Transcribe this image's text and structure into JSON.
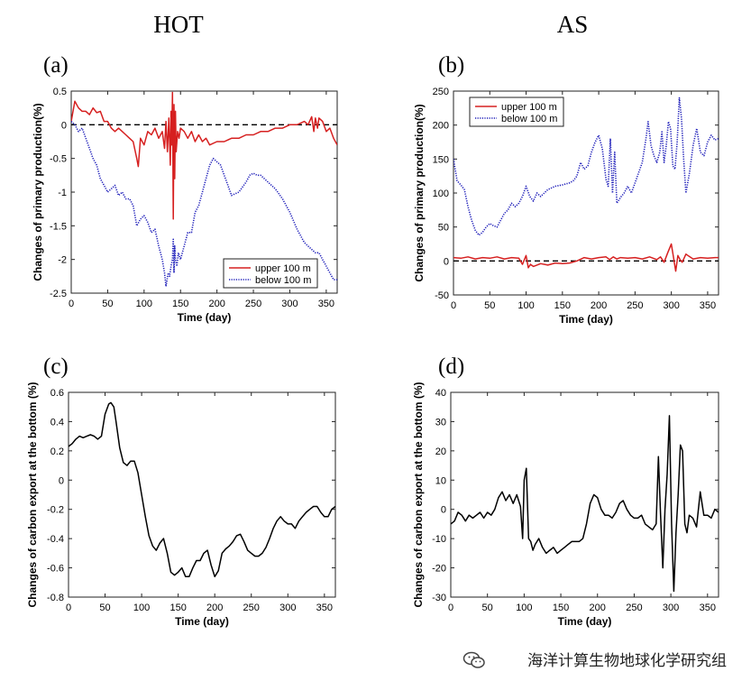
{
  "column_titles": [
    "HOT",
    "AS"
  ],
  "watermark": {
    "text": "海洋计算生物地球化学研究组"
  },
  "colors": {
    "upper": "#d62020",
    "below": "#1a1ab8",
    "export": "#000000",
    "reference": "#000000"
  },
  "chart_data": [
    {
      "id": "a",
      "label": "(a)",
      "column": "HOT",
      "type": "line",
      "xlabel": "Time (day)",
      "ylabel": "Changes of primary production(%)",
      "xlim": [
        0,
        365
      ],
      "ylim": [
        -2.5,
        0.5
      ],
      "xticks": [
        0,
        50,
        100,
        150,
        200,
        250,
        300,
        350
      ],
      "yticks": [
        0.5,
        0,
        -0.5,
        -1,
        -1.5,
        -2,
        -2.5
      ],
      "ytick_labels": [
        "0.5",
        "0",
        "-0.5",
        "-1",
        "-1.5",
        "-2",
        "-2.5"
      ],
      "reference_line": 0,
      "legend": {
        "position": "bottom-right",
        "entries": [
          "upper 100 m",
          "below 100 m"
        ]
      },
      "series": [
        {
          "name": "upper 100 m",
          "color": "#d62020",
          "style": "solid",
          "x": [
            0,
            5,
            10,
            15,
            20,
            25,
            30,
            35,
            40,
            45,
            50,
            55,
            60,
            65,
            70,
            75,
            80,
            85,
            90,
            92,
            95,
            100,
            105,
            110,
            115,
            120,
            125,
            128,
            130,
            132,
            134,
            136,
            137,
            138,
            139,
            140,
            141,
            142,
            143,
            144,
            146,
            148,
            150,
            155,
            160,
            165,
            170,
            175,
            180,
            185,
            190,
            200,
            210,
            220,
            230,
            240,
            250,
            260,
            270,
            280,
            290,
            300,
            310,
            320,
            325,
            330,
            333,
            335,
            338,
            340,
            345,
            350,
            355,
            360,
            365
          ],
          "y": [
            0.05,
            0.35,
            0.25,
            0.2,
            0.2,
            0.15,
            0.25,
            0.18,
            0.2,
            0.05,
            0.05,
            -0.05,
            -0.1,
            -0.05,
            -0.1,
            -0.15,
            -0.2,
            -0.25,
            -0.5,
            -0.62,
            -0.2,
            -0.3,
            -0.1,
            -0.15,
            -0.05,
            -0.2,
            -0.1,
            -0.35,
            0.05,
            -0.4,
            0.1,
            -0.6,
            0.2,
            -0.3,
            0.48,
            -1.4,
            0.3,
            -0.8,
            0.2,
            -0.4,
            -0.1,
            -0.2,
            -0.05,
            -0.1,
            -0.2,
            -0.1,
            -0.25,
            -0.15,
            -0.25,
            -0.2,
            -0.3,
            -0.25,
            -0.25,
            -0.2,
            -0.2,
            -0.15,
            -0.15,
            -0.1,
            -0.1,
            -0.05,
            -0.05,
            0.0,
            0.0,
            0.05,
            0.0,
            0.12,
            -0.1,
            0.1,
            -0.05,
            0.1,
            0.05,
            -0.1,
            -0.05,
            -0.2,
            -0.3
          ]
        },
        {
          "name": "below 100 m",
          "color": "#1a1ab8",
          "style": "dotted",
          "x": [
            0,
            5,
            10,
            15,
            20,
            25,
            30,
            35,
            40,
            45,
            50,
            55,
            60,
            65,
            70,
            75,
            80,
            85,
            90,
            95,
            100,
            105,
            110,
            115,
            120,
            125,
            128,
            130,
            133,
            135,
            137,
            139,
            140,
            141,
            142,
            143,
            145,
            147,
            150,
            155,
            160,
            165,
            170,
            175,
            180,
            185,
            190,
            195,
            200,
            205,
            210,
            215,
            220,
            230,
            240,
            245,
            250,
            255,
            260,
            265,
            270,
            280,
            290,
            300,
            310,
            320,
            330,
            335,
            340,
            345,
            350,
            355,
            360,
            365
          ],
          "y": [
            0.05,
            0.0,
            -0.1,
            -0.05,
            -0.2,
            -0.35,
            -0.5,
            -0.6,
            -0.8,
            -0.9,
            -1.0,
            -0.95,
            -0.9,
            -1.05,
            -1.0,
            -1.1,
            -1.1,
            -1.2,
            -1.5,
            -1.4,
            -1.35,
            -1.45,
            -1.6,
            -1.55,
            -1.8,
            -2.0,
            -2.2,
            -2.4,
            -2.2,
            -2.25,
            -2.1,
            -2.0,
            -1.7,
            -2.2,
            -1.8,
            -2.0,
            -2.1,
            -1.9,
            -2.0,
            -1.8,
            -1.6,
            -1.6,
            -1.3,
            -1.2,
            -1.0,
            -0.8,
            -0.6,
            -0.5,
            -0.55,
            -0.6,
            -0.75,
            -0.9,
            -1.05,
            -1.0,
            -0.85,
            -0.75,
            -0.72,
            -0.75,
            -0.75,
            -0.8,
            -0.85,
            -0.95,
            -1.1,
            -1.3,
            -1.55,
            -1.75,
            -1.85,
            -1.9,
            -1.9,
            -2.0,
            -2.1,
            -2.2,
            -2.3,
            -2.3
          ]
        }
      ]
    },
    {
      "id": "b",
      "label": "(b)",
      "column": "AS",
      "type": "line",
      "xlabel": "Time (day)",
      "ylabel": "Changes of primary production(%)",
      "xlim": [
        0,
        365
      ],
      "ylim": [
        -50,
        250
      ],
      "xticks": [
        0,
        50,
        100,
        150,
        200,
        250,
        300,
        350
      ],
      "yticks": [
        250,
        200,
        150,
        100,
        50,
        0,
        -50
      ],
      "ytick_labels": [
        "250",
        "200",
        "150",
        "100",
        "50",
        "0",
        "-50"
      ],
      "reference_line": 0,
      "legend": {
        "position": "top-left",
        "entries": [
          "upper 100 m",
          "below 100 m"
        ]
      },
      "series": [
        {
          "name": "upper 100 m",
          "color": "#d62020",
          "style": "solid",
          "x": [
            0,
            10,
            20,
            30,
            40,
            50,
            60,
            70,
            80,
            90,
            95,
            100,
            103,
            106,
            110,
            120,
            130,
            140,
            150,
            160,
            170,
            180,
            190,
            200,
            210,
            215,
            220,
            225,
            230,
            240,
            250,
            260,
            270,
            280,
            285,
            290,
            295,
            300,
            303,
            306,
            309,
            312,
            315,
            320,
            330,
            340,
            350,
            360,
            365
          ],
          "y": [
            5,
            4,
            6,
            3,
            5,
            4,
            6,
            3,
            5,
            4,
            -5,
            8,
            -10,
            -5,
            -8,
            -4,
            -6,
            -3,
            -4,
            -3,
            0,
            5,
            3,
            5,
            6,
            2,
            6,
            3,
            5,
            4,
            5,
            3,
            6,
            2,
            6,
            -2,
            12,
            25,
            5,
            -15,
            8,
            2,
            -2,
            10,
            3,
            5,
            4,
            5,
            5
          ]
        },
        {
          "name": "below 100 m",
          "color": "#1a1ab8",
          "style": "dotted",
          "x": [
            0,
            5,
            10,
            15,
            20,
            25,
            30,
            35,
            40,
            45,
            50,
            55,
            60,
            65,
            70,
            75,
            80,
            85,
            90,
            95,
            100,
            105,
            110,
            115,
            120,
            130,
            140,
            150,
            160,
            165,
            170,
            175,
            180,
            185,
            190,
            195,
            200,
            205,
            210,
            213,
            216,
            219,
            222,
            225,
            228,
            231,
            235,
            240,
            245,
            250,
            255,
            260,
            265,
            268,
            272,
            276,
            280,
            284,
            287,
            290,
            293,
            296,
            299,
            302,
            305,
            308,
            311,
            314,
            317,
            320,
            325,
            330,
            335,
            340,
            345,
            350,
            355,
            360,
            365
          ],
          "y": [
            150,
            118,
            112,
            105,
            80,
            60,
            45,
            38,
            42,
            50,
            55,
            52,
            50,
            60,
            70,
            75,
            85,
            80,
            85,
            95,
            110,
            95,
            88,
            100,
            95,
            105,
            110,
            112,
            115,
            118,
            125,
            145,
            135,
            140,
            160,
            175,
            185,
            165,
            120,
            110,
            180,
            100,
            160,
            85,
            90,
            95,
            100,
            110,
            100,
            115,
            130,
            145,
            180,
            205,
            170,
            155,
            145,
            160,
            190,
            145,
            170,
            205,
            195,
            140,
            135,
            175,
            240,
            210,
            150,
            100,
            130,
            170,
            195,
            160,
            155,
            175,
            185,
            178,
            180
          ]
        }
      ]
    },
    {
      "id": "c",
      "label": "(c)",
      "column": "HOT",
      "type": "line",
      "xlabel": "Time (day)",
      "ylabel": "Changes of carbon export at the bottom (%)",
      "xlim": [
        0,
        365
      ],
      "ylim": [
        -0.8,
        0.6
      ],
      "xticks": [
        0,
        50,
        100,
        150,
        200,
        250,
        300,
        350
      ],
      "yticks": [
        0.6,
        0.4,
        0.2,
        0,
        -0.2,
        -0.4,
        -0.6,
        -0.8
      ],
      "ytick_labels": [
        "0.6",
        "0.4",
        "0.2",
        "0",
        "-0.2",
        "-0.4",
        "-0.6",
        "-0.8"
      ],
      "series": [
        {
          "name": "carbon export",
          "color": "#000000",
          "style": "solid",
          "x": [
            0,
            5,
            10,
            15,
            20,
            25,
            30,
            35,
            40,
            45,
            50,
            55,
            58,
            62,
            65,
            70,
            75,
            80,
            85,
            90,
            95,
            100,
            105,
            110,
            115,
            120,
            125,
            130,
            135,
            140,
            145,
            150,
            155,
            160,
            165,
            170,
            175,
            180,
            185,
            190,
            195,
            200,
            205,
            210,
            215,
            220,
            225,
            230,
            235,
            240,
            245,
            250,
            255,
            260,
            265,
            270,
            275,
            280,
            285,
            290,
            295,
            300,
            305,
            310,
            315,
            320,
            325,
            330,
            335,
            340,
            345,
            350,
            355,
            360,
            365
          ],
          "y": [
            0.23,
            0.25,
            0.28,
            0.3,
            0.29,
            0.3,
            0.31,
            0.3,
            0.28,
            0.3,
            0.45,
            0.52,
            0.53,
            0.5,
            0.4,
            0.22,
            0.12,
            0.1,
            0.13,
            0.13,
            0.05,
            -0.1,
            -0.25,
            -0.38,
            -0.45,
            -0.48,
            -0.43,
            -0.4,
            -0.5,
            -0.63,
            -0.65,
            -0.63,
            -0.6,
            -0.66,
            -0.66,
            -0.6,
            -0.55,
            -0.55,
            -0.5,
            -0.48,
            -0.58,
            -0.66,
            -0.62,
            -0.5,
            -0.47,
            -0.45,
            -0.42,
            -0.38,
            -0.37,
            -0.42,
            -0.48,
            -0.5,
            -0.52,
            -0.52,
            -0.5,
            -0.46,
            -0.4,
            -0.33,
            -0.28,
            -0.25,
            -0.28,
            -0.3,
            -0.3,
            -0.33,
            -0.28,
            -0.25,
            -0.22,
            -0.2,
            -0.18,
            -0.18,
            -0.22,
            -0.25,
            -0.25,
            -0.2,
            -0.18
          ]
        }
      ]
    },
    {
      "id": "d",
      "label": "(d)",
      "column": "AS",
      "type": "line",
      "xlabel": "Time (day)",
      "ylabel": "Changes of carbon export at the bottom (%)",
      "xlim": [
        0,
        365
      ],
      "ylim": [
        -30,
        40
      ],
      "xticks": [
        0,
        50,
        100,
        150,
        200,
        250,
        300,
        350
      ],
      "yticks": [
        40,
        30,
        20,
        10,
        0,
        -10,
        -20,
        -30
      ],
      "ytick_labels": [
        "40",
        "30",
        "20",
        "10",
        "0",
        "-10",
        "-20",
        "-30"
      ],
      "series": [
        {
          "name": "carbon export",
          "color": "#000000",
          "style": "solid",
          "x": [
            0,
            5,
            10,
            15,
            20,
            25,
            30,
            35,
            40,
            45,
            50,
            55,
            60,
            65,
            70,
            75,
            80,
            85,
            90,
            95,
            98,
            100,
            103,
            106,
            109,
            112,
            115,
            120,
            125,
            130,
            135,
            140,
            145,
            150,
            155,
            160,
            165,
            170,
            175,
            180,
            185,
            190,
            195,
            200,
            205,
            210,
            215,
            220,
            225,
            230,
            235,
            240,
            245,
            250,
            255,
            260,
            265,
            270,
            275,
            280,
            283,
            286,
            289,
            292,
            295,
            298,
            301,
            304,
            307,
            310,
            313,
            316,
            319,
            322,
            325,
            330,
            335,
            340,
            345,
            350,
            355,
            360,
            365
          ],
          "y": [
            -5,
            -4,
            -1,
            -2,
            -4,
            -2,
            -3,
            -2,
            -1,
            -3,
            -1,
            -2,
            0,
            4,
            6,
            3,
            5,
            2,
            5,
            1,
            -10,
            10,
            14,
            -10,
            -11,
            -14,
            -12,
            -10,
            -13,
            -15,
            -14,
            -13,
            -15,
            -14,
            -13,
            -12,
            -11,
            -11,
            -11,
            -10,
            -5,
            2,
            5,
            4,
            0,
            -2,
            -2,
            -3,
            -1,
            2,
            3,
            0,
            -2,
            -3,
            -3,
            -2,
            -5,
            -6,
            -7,
            -5,
            18,
            -2,
            -20,
            0,
            12,
            32,
            -5,
            -28,
            -8,
            5,
            22,
            20,
            -5,
            -8,
            -2,
            -3,
            -6,
            6,
            -2,
            -2,
            -3,
            0,
            -1
          ]
        }
      ]
    }
  ]
}
